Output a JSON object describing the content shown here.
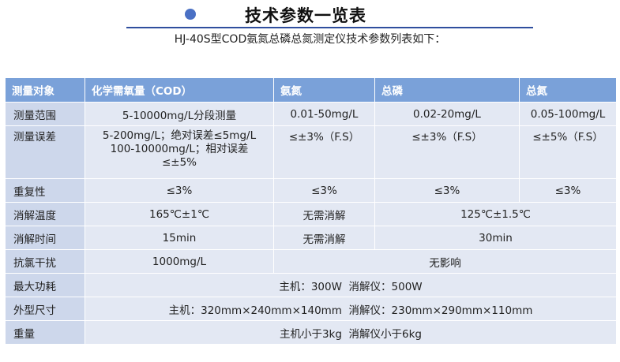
{
  "header": {
    "title": "技术参数一览表",
    "subtitle": "HJ-40S型COD氨氮总磷总氮测定仪技术参数列表如下："
  },
  "table": {
    "columns": [
      "测量对象",
      "化学需氧量（COD）",
      "氨氮",
      "总磷",
      "总氮"
    ],
    "rows": {
      "range": {
        "label": "测量范围",
        "cod": "5-10000mg/L分段测量",
        "nh3": "0.01-50mg/L",
        "tp": "0.02-20mg/L",
        "tn": "0.05-100mg/L"
      },
      "error": {
        "label": "测量误差",
        "cod_line1": "5-200mg/L；绝对误差≤5mg/L",
        "cod_line2": "100-10000mg/L；相对误差",
        "cod_line3": "≤±5%",
        "nh3": "≤±3%（F.S）",
        "tp": "≤±3%（F.S）",
        "tn": "≤±5%（F.S）"
      },
      "repeat": {
        "label": "重复性",
        "cod": "≤3%",
        "nh3": "≤3%",
        "tp": "≤3%",
        "tn": "≤3%"
      },
      "temp": {
        "label": "消解温度",
        "cod": "165℃±1℃",
        "nh3": "无需消解",
        "tptn": "125℃±1.5℃"
      },
      "time": {
        "label": "消解时间",
        "cod": "15min",
        "nh3": "无需消解",
        "tptn": "30min"
      },
      "chlorine": {
        "label": "抗氯干扰",
        "cod": "1000mg/L",
        "others": "无影响"
      },
      "power": {
        "label": "最大功耗",
        "value": "主机：300W  消解仪：500W"
      },
      "size": {
        "label": "外型尺寸",
        "value": "主机：320mm×240mm×140mm  消解仪：230mm×290mm×110mm"
      },
      "weight": {
        "label": "重量",
        "value": "主机小于3kg  消解仪小于6kg"
      }
    }
  }
}
